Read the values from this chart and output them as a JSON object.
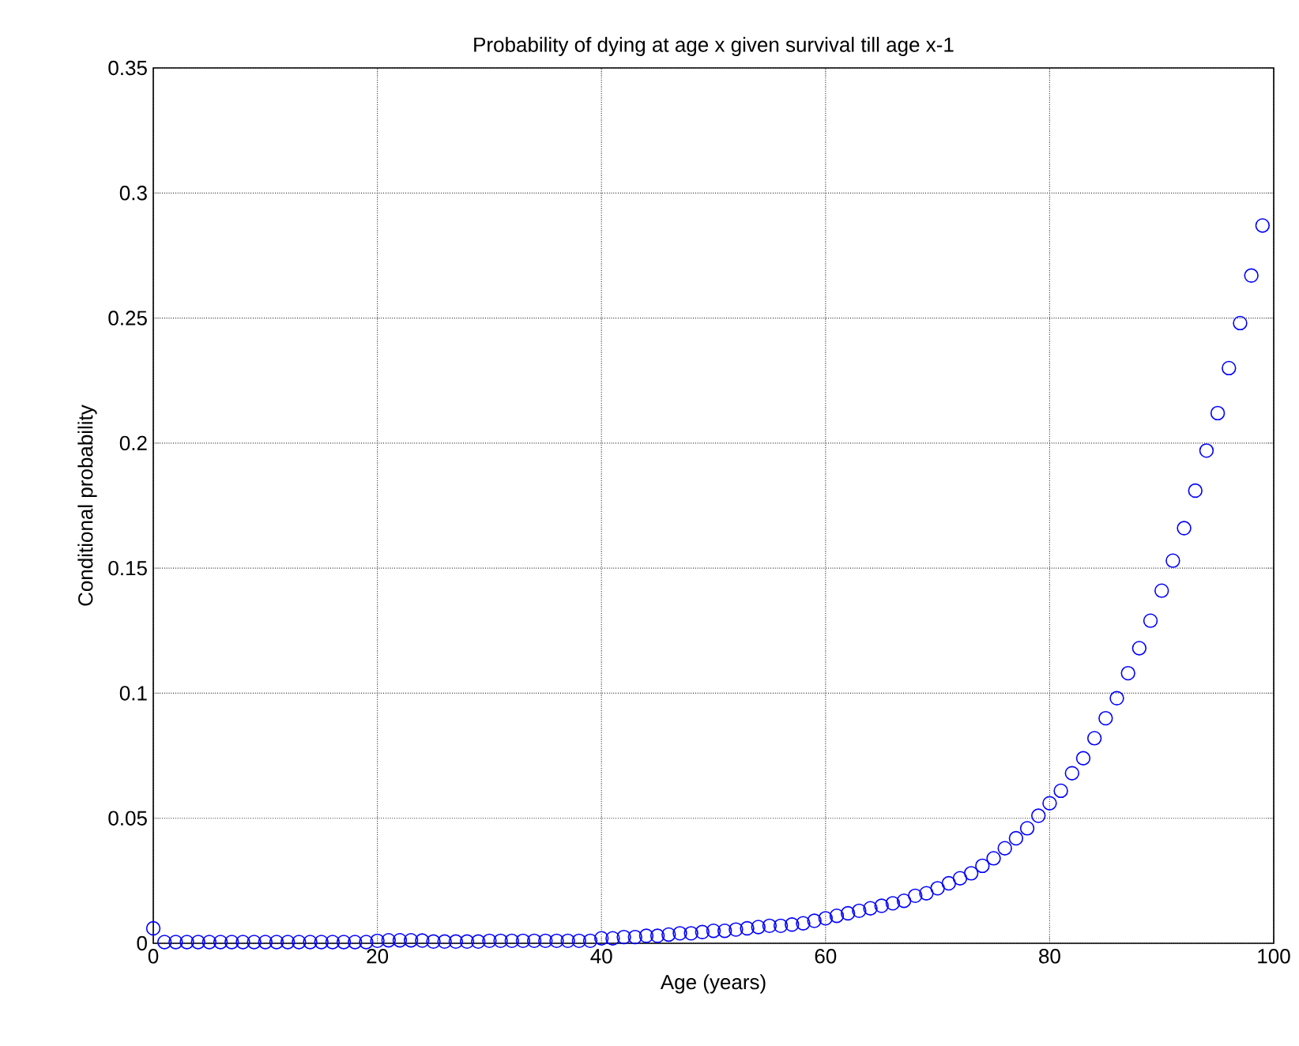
{
  "chart_data": {
    "type": "scatter",
    "title": "Probability of dying at age x given survival till age x-1",
    "xlabel": "Age (years)",
    "ylabel": "Conditional probability",
    "xlim": [
      0,
      100
    ],
    "ylim": [
      0,
      0.35
    ],
    "xticks": [
      0,
      20,
      40,
      60,
      80,
      100
    ],
    "yticks": [
      0,
      0.05,
      0.1,
      0.15,
      0.2,
      0.25,
      0.3,
      0.35
    ],
    "grid": true,
    "marker": "circle",
    "series": [
      {
        "color": "#0000ff",
        "x": [
          0,
          1,
          2,
          3,
          4,
          5,
          6,
          7,
          8,
          9,
          10,
          11,
          12,
          13,
          14,
          15,
          16,
          17,
          18,
          19,
          20,
          21,
          22,
          23,
          24,
          25,
          26,
          27,
          28,
          29,
          30,
          31,
          32,
          33,
          34,
          35,
          36,
          37,
          38,
          39,
          40,
          41,
          42,
          43,
          44,
          45,
          46,
          47,
          48,
          49,
          50,
          51,
          52,
          53,
          54,
          55,
          56,
          57,
          58,
          59,
          60,
          61,
          62,
          63,
          64,
          65,
          66,
          67,
          68,
          69,
          70,
          71,
          72,
          73,
          74,
          75,
          76,
          77,
          78,
          79,
          80,
          81,
          82,
          83,
          84,
          85,
          86,
          87,
          88,
          89,
          90,
          91,
          92,
          93,
          94,
          95,
          96,
          97,
          98,
          99
        ],
        "values": [
          0.006,
          0.0005,
          0.0005,
          0.0005,
          0.0005,
          0.0005,
          0.0005,
          0.0005,
          0.0005,
          0.0005,
          0.0005,
          0.0005,
          0.0005,
          0.0005,
          0.0005,
          0.0005,
          0.0005,
          0.0005,
          0.0005,
          0.0005,
          0.001,
          0.0012,
          0.0012,
          0.0012,
          0.0011,
          0.0007,
          0.0007,
          0.0007,
          0.0007,
          0.0007,
          0.001,
          0.001,
          0.001,
          0.001,
          0.001,
          0.001,
          0.001,
          0.001,
          0.001,
          0.001,
          0.002,
          0.002,
          0.0025,
          0.0025,
          0.003,
          0.003,
          0.0035,
          0.004,
          0.004,
          0.0045,
          0.005,
          0.005,
          0.0055,
          0.006,
          0.0065,
          0.007,
          0.007,
          0.0075,
          0.008,
          0.009,
          0.01,
          0.011,
          0.012,
          0.013,
          0.014,
          0.015,
          0.016,
          0.017,
          0.019,
          0.02,
          0.022,
          0.024,
          0.026,
          0.028,
          0.031,
          0.034,
          0.038,
          0.042,
          0.046,
          0.051,
          0.056,
          0.061,
          0.068,
          0.074,
          0.082,
          0.09,
          0.098,
          0.108,
          0.118,
          0.129,
          0.141,
          0.153,
          0.166,
          0.181,
          0.197,
          0.212,
          0.23,
          0.248,
          0.267,
          0.287
        ]
      }
    ]
  }
}
